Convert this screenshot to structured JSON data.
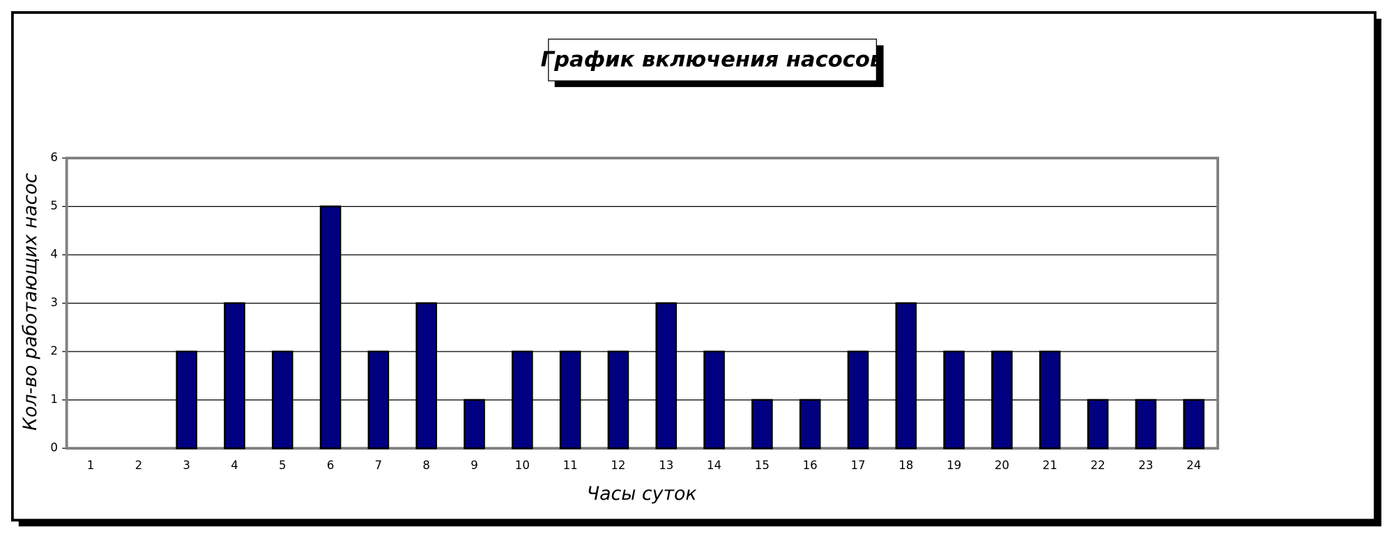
{
  "chart_data": {
    "type": "bar",
    "title": "График включения насосов",
    "x_label": "Часы суток",
    "y_label": "Кол-во работающих насос",
    "categories": [
      "1",
      "2",
      "3",
      "4",
      "5",
      "6",
      "7",
      "8",
      "9",
      "10",
      "11",
      "12",
      "13",
      "14",
      "15",
      "16",
      "17",
      "18",
      "19",
      "20",
      "21",
      "22",
      "23",
      "24"
    ],
    "values": [
      0,
      0,
      2,
      3,
      2,
      5,
      2,
      3,
      1,
      2,
      2,
      2,
      3,
      2,
      1,
      1,
      2,
      3,
      2,
      2,
      2,
      1,
      1,
      1
    ],
    "color": "#000080",
    "ylim": [
      0,
      6
    ],
    "yticks": [
      0,
      1,
      2,
      3,
      4,
      5,
      6
    ],
    "grid": true
  }
}
